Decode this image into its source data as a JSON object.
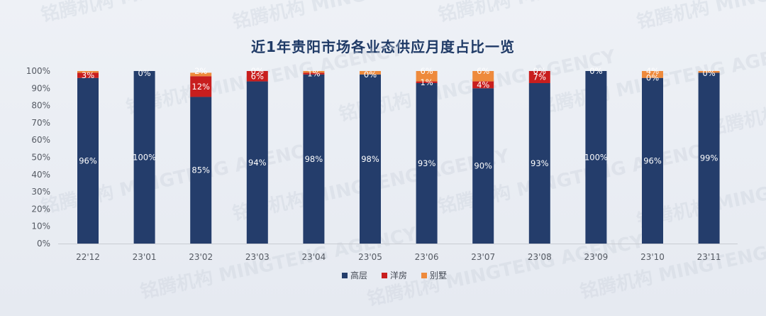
{
  "chart_data": {
    "type": "bar",
    "stacked": true,
    "title": "近1年贵阳市场各业态供应月度占比一览",
    "categories": [
      "22'12",
      "23'01",
      "23'02",
      "23'03",
      "23'04",
      "23'05",
      "23'06",
      "23'07",
      "23'08",
      "23'09",
      "23'10",
      "23'11"
    ],
    "series": [
      {
        "name": "高层",
        "color": "#243d6b",
        "values": [
          96,
          100,
          85,
          94,
          98,
          98,
          93,
          90,
          93,
          100,
          96,
          99
        ],
        "labels": [
          "96%",
          "100%",
          "85%",
          "94%",
          "98%",
          "98%",
          "93%",
          "90%",
          "93%",
          "100%",
          "96%",
          "99%"
        ]
      },
      {
        "name": "洋房",
        "color": "#c81e1e",
        "values": [
          3,
          0,
          12,
          6,
          1,
          0,
          1,
          4,
          7,
          0,
          0,
          0
        ],
        "labels": [
          "3%",
          "0%",
          "12%",
          "6%",
          "1%",
          "0%",
          "1%",
          "4%",
          "7%",
          "",
          "0%",
          "0%"
        ]
      },
      {
        "name": "别墅",
        "color": "#ee8a3c",
        "values": [
          1,
          0,
          2,
          0,
          1,
          2,
          6,
          6,
          0,
          0,
          4,
          1
        ],
        "labels": [
          "",
          "",
          "2%",
          "0%",
          "",
          "",
          "6%",
          "6%",
          "0%",
          "0%",
          "4%",
          ""
        ]
      }
    ],
    "ylim": [
      0,
      100
    ],
    "yticks": [
      "0%",
      "10%",
      "20%",
      "30%",
      "40%",
      "50%",
      "60%",
      "70%",
      "80%",
      "90%",
      "100%"
    ],
    "legend_position": "bottom",
    "grid": false,
    "watermark": "铭腾机构 MINGTENG AGENCY"
  }
}
